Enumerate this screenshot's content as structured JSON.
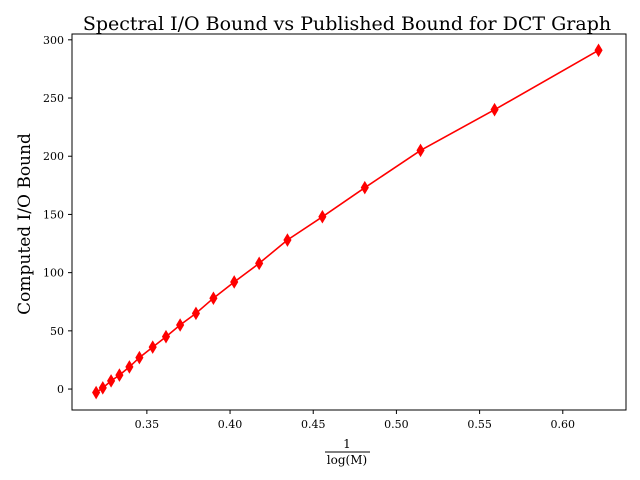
{
  "chart_data": {
    "type": "line",
    "title": "Spectral I/O Bound vs Published Bound for DCT Graph",
    "xlabel_numerator": "1",
    "xlabel_denominator": "log(M)",
    "ylabel": "Computed I/O Bound",
    "xlim": [
      0.305,
      0.638
    ],
    "ylim": [
      -18,
      305
    ],
    "xticks": [
      0.35,
      0.4,
      0.45,
      0.5,
      0.55,
      0.6
    ],
    "xtick_labels": [
      "0.35",
      "0.40",
      "0.45",
      "0.50",
      "0.55",
      "0.60"
    ],
    "yticks": [
      0,
      50,
      100,
      150,
      200,
      250,
      300
    ],
    "ytick_labels": [
      "0",
      "50",
      "100",
      "150",
      "200",
      "250",
      "300"
    ],
    "grid": false,
    "series": [
      {
        "color": "#ff0000",
        "marker": "diamond",
        "x": [
          0.3195,
          0.3235,
          0.3285,
          0.3335,
          0.3395,
          0.3455,
          0.3535,
          0.3615,
          0.37,
          0.3795,
          0.39,
          0.4025,
          0.4175,
          0.4345,
          0.4555,
          0.481,
          0.5145,
          0.559,
          0.6215
        ],
        "y": [
          -3,
          1,
          7,
          12,
          19,
          27,
          36,
          45,
          55,
          65,
          78,
          92,
          108,
          128,
          148,
          173,
          205,
          240,
          291
        ]
      }
    ]
  }
}
